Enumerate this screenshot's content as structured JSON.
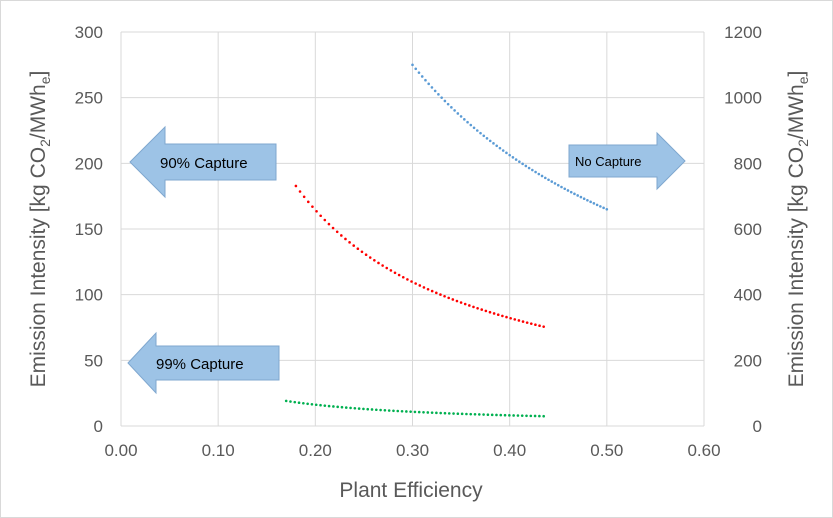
{
  "chart_data": {
    "type": "scatter",
    "xlabel": "Plant Efficiency",
    "ylabel_left": {
      "main": "Emission Intensity [kg CO",
      "sub1": "2",
      "mid": "/MWh",
      "sub2": "e",
      "end": "]"
    },
    "ylabel_right": {
      "main": "Emission Intensity [kg CO",
      "sub1": "2",
      "mid": "/MWh",
      "sub2": "e",
      "end": "]"
    },
    "xlim": [
      0,
      0.6
    ],
    "ylim_left": [
      0,
      300
    ],
    "ylim_right": [
      0,
      1200
    ],
    "x_ticks": [
      "0.00",
      "0.10",
      "0.20",
      "0.30",
      "0.40",
      "0.50",
      "0.60"
    ],
    "y_ticks_left": [
      "0",
      "50",
      "100",
      "150",
      "200",
      "250",
      "300"
    ],
    "y_ticks_right": [
      "0",
      "200",
      "400",
      "600",
      "800",
      "1000",
      "1200"
    ],
    "grid": true,
    "series": [
      {
        "name": "No Capture",
        "axis": "right",
        "color": "#5b9bd5",
        "x_range": [
          0.3,
          0.5
        ],
        "k": 330
      },
      {
        "name": "90% Capture",
        "axis": "left",
        "color": "#ff0000",
        "x_range": [
          0.18,
          0.435
        ],
        "k": 32.9
      },
      {
        "name": "99% Capture",
        "axis": "left",
        "color": "#00b050",
        "x_range": [
          0.17,
          0.435
        ],
        "k": 3.25
      }
    ],
    "annotations": [
      {
        "text": "90% Capture",
        "direction": "left",
        "icon": "left-arrow"
      },
      {
        "text": "99% Capture",
        "direction": "left",
        "icon": "left-arrow"
      },
      {
        "text": "No Capture",
        "direction": "right",
        "icon": "right-arrow"
      }
    ]
  }
}
